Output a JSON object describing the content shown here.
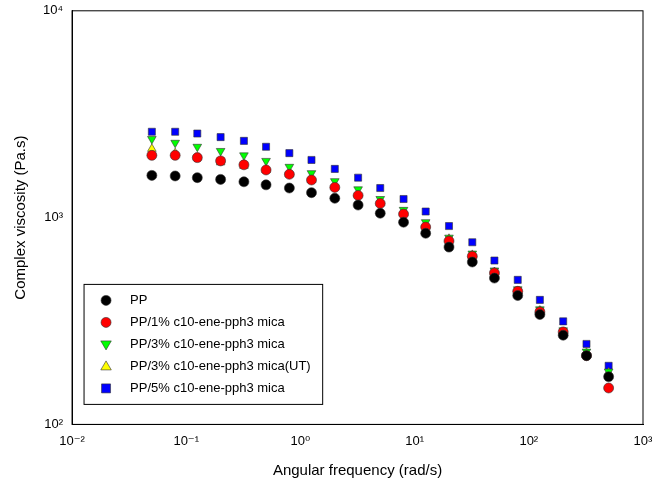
{
  "chart_data": {
    "type": "scatter",
    "x_label": "Angular frequency (rad/s)",
    "y_label": "Complex viscosity (Pa.s)",
    "log": true,
    "grid": false,
    "legend": "lower left",
    "xlim": [
      0.01,
      1000
    ],
    "ylim": [
      100,
      10000
    ],
    "xticks": [
      {
        "value": 0.01,
        "label": "10⁻²"
      },
      {
        "value": 0.1,
        "label": "10⁻¹"
      },
      {
        "value": 1,
        "label": "10⁰"
      },
      {
        "value": 10,
        "label": "10¹"
      },
      {
        "value": 100,
        "label": "10²"
      },
      {
        "value": 1000,
        "label": "10³"
      }
    ],
    "yticks": [
      {
        "value": 100,
        "label": "10²"
      },
      {
        "value": 1000,
        "label": "10³"
      },
      {
        "value": 10000,
        "label": "10⁴"
      }
    ],
    "x": [
      0.05,
      0.08,
      0.125,
      0.2,
      0.32,
      0.5,
      0.8,
      1.25,
      2,
      3.2,
      5,
      8,
      12.5,
      20,
      32,
      50,
      80,
      125,
      200,
      320,
      500
    ],
    "series": [
      {
        "name": "PP",
        "color": "#000000",
        "marker": "circle",
        "values": [
          1600,
          1590,
          1560,
          1530,
          1490,
          1440,
          1390,
          1320,
          1240,
          1150,
          1050,
          950,
          840,
          720,
          610,
          510,
          420,
          340,
          270,
          215,
          170
        ]
      },
      {
        "name": "PP/1% c10-ene-pph3 mica",
        "color": "#ff0000",
        "marker": "circle",
        "values": [
          2000,
          2000,
          1950,
          1880,
          1800,
          1700,
          1620,
          1520,
          1400,
          1280,
          1170,
          1040,
          900,
          770,
          650,
          540,
          440,
          350,
          280,
          215,
          150
        ]
      },
      {
        "name": "PP/3% c10-ene-pph3 mica",
        "color": "#00ff00",
        "marker": "triangle-down",
        "values": [
          2400,
          2300,
          2200,
          2100,
          2000,
          1880,
          1760,
          1640,
          1500,
          1370,
          1230,
          1090,
          950,
          800,
          670,
          555,
          450,
          360,
          285,
          225,
          180
        ]
      },
      {
        "name": "PP/3% c10-ene-pph3 mica(UT)",
        "color": "#ffff00",
        "marker": "triangle",
        "values": [
          2150,
          2050,
          1950,
          1850,
          1780,
          1700,
          1620,
          1520,
          1420,
          1300,
          1180,
          1050,
          920,
          790,
          660,
          545,
          440,
          355,
          280,
          222,
          178
        ]
      },
      {
        "name": "PP/5% c10-ene-pph3 mica",
        "color": "#0000ff",
        "marker": "square",
        "values": [
          2600,
          2600,
          2550,
          2450,
          2350,
          2200,
          2050,
          1900,
          1720,
          1560,
          1390,
          1230,
          1070,
          910,
          760,
          620,
          500,
          400,
          315,
          245,
          192
        ]
      }
    ]
  }
}
